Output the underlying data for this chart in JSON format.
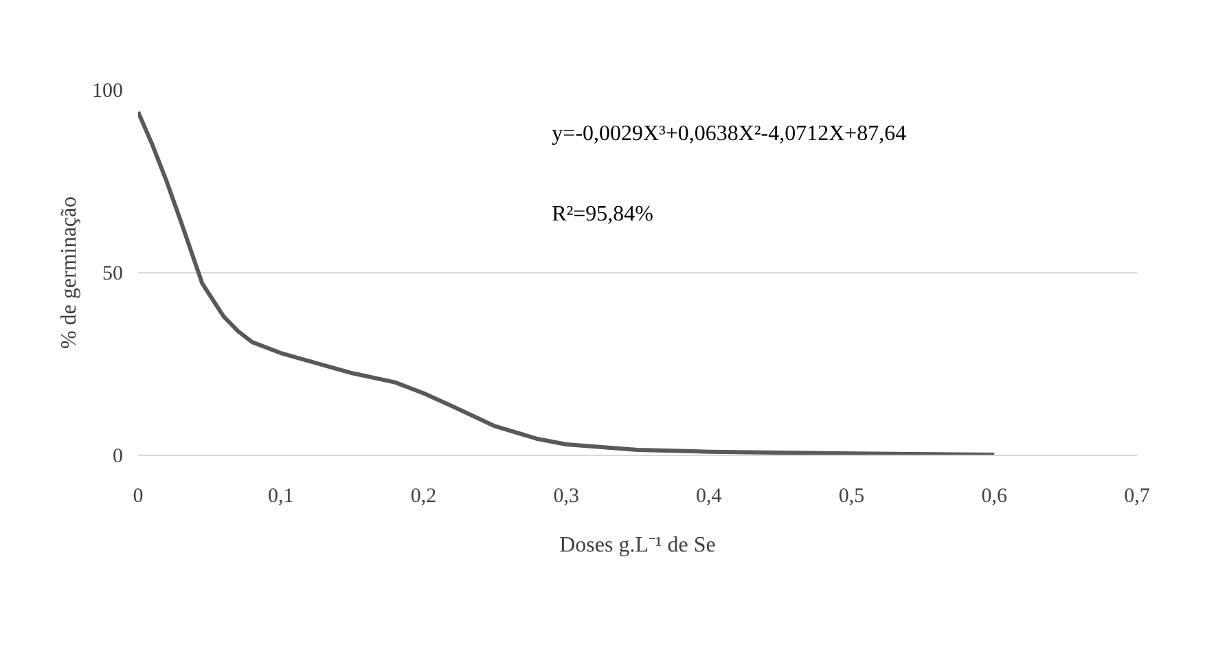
{
  "chart_data": {
    "type": "line",
    "xlabel": "Doses g.L⁻¹ de Se",
    "ylabel": "% de germinação",
    "x": [
      0,
      0.01,
      0.02,
      0.03,
      0.045,
      0.06,
      0.07,
      0.08,
      0.1,
      0.15,
      0.18,
      0.2,
      0.22,
      0.25,
      0.28,
      0.3,
      0.35,
      0.4,
      0.5,
      0.6
    ],
    "series": [
      {
        "color": "#595959",
        "values": [
          94,
          85,
          75,
          64,
          47,
          38,
          34,
          31,
          28,
          22.5,
          20,
          17,
          13.5,
          8,
          4.5,
          3,
          1.5,
          1,
          0.5,
          0.2
        ]
      }
    ],
    "xlim": [
      0,
      0.7
    ],
    "xticks": [
      0,
      {
        "value": 0.1,
        "label": "0,1"
      },
      {
        "value": 0.2,
        "label": "0,2"
      },
      {
        "value": 0.3,
        "label": "0,3"
      },
      {
        "value": 0.4,
        "label": "0,4"
      },
      {
        "value": 0.5,
        "label": "0,5"
      },
      {
        "value": 0.6,
        "label": "0,6"
      },
      {
        "value": 0.7,
        "label": "0,7"
      }
    ],
    "ylim": [
      0,
      100
    ],
    "yticks": [
      0,
      50,
      100
    ],
    "grid": "y",
    "marker": "none",
    "line_style": "solid",
    "annotations": [
      "y=-0,0029X³+0,0638X²-4,0712X+87,64",
      "R²=95,84%"
    ]
  }
}
